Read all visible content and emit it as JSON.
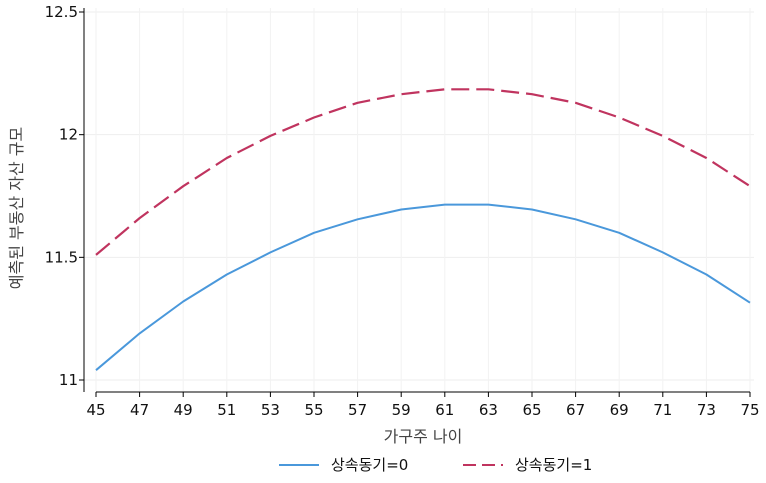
{
  "chart_data": {
    "type": "line",
    "xlabel": "가구주 나이",
    "ylabel": "예측된 부동산 자산 규모",
    "xlim": [
      45,
      75
    ],
    "ylim": [
      11,
      12.5
    ],
    "x_ticks": [
      "45",
      "47",
      "49",
      "51",
      "53",
      "55",
      "57",
      "59",
      "61",
      "63",
      "65",
      "67",
      "69",
      "71",
      "73",
      "75"
    ],
    "y_ticks": [
      "11",
      "11.5",
      "12",
      "12.5"
    ],
    "grid": true,
    "legend_position": "bottom",
    "x": [
      45,
      47,
      49,
      51,
      53,
      55,
      57,
      59,
      61,
      63,
      65,
      67,
      69,
      71,
      73,
      75
    ],
    "series": [
      {
        "name": "상속동기=0",
        "color": "#4a98db",
        "style": "solid",
        "values": [
          11.04,
          11.19,
          11.32,
          11.43,
          11.52,
          11.6,
          11.655,
          11.695,
          11.715,
          11.715,
          11.695,
          11.655,
          11.6,
          11.52,
          11.43,
          11.315
        ]
      },
      {
        "name": "상속동기=1",
        "color": "#c0345f",
        "style": "dashed",
        "values": [
          11.51,
          11.66,
          11.79,
          11.905,
          11.995,
          12.07,
          12.13,
          12.165,
          12.185,
          12.185,
          12.165,
          12.13,
          12.07,
          11.995,
          11.905,
          11.79
        ]
      }
    ]
  }
}
